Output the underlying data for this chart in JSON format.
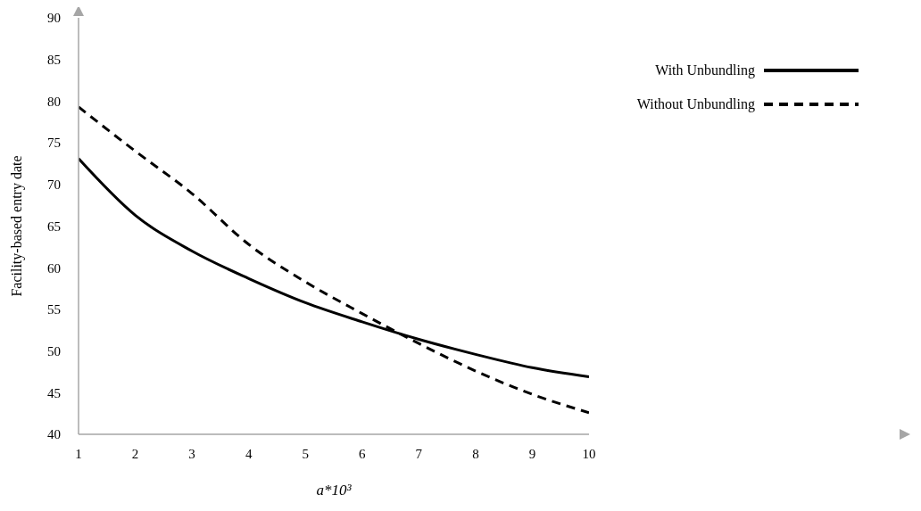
{
  "chart_data": {
    "type": "line",
    "xlabel": "a*10³",
    "ylabel": "Facility-based entry date",
    "x": [
      1,
      2,
      3,
      4,
      5,
      6,
      7,
      8,
      9,
      10
    ],
    "xlim": [
      1,
      10
    ],
    "xticks": [
      1,
      2,
      3,
      4,
      5,
      6,
      7,
      8,
      9,
      10
    ],
    "ylim": [
      40,
      90
    ],
    "yticks": [
      40,
      45,
      50,
      55,
      60,
      65,
      70,
      75,
      80,
      85,
      90
    ],
    "grid": false,
    "legend": "top right",
    "marker": "none",
    "series": [
      {
        "name": "With Unbundling",
        "color": "#000000",
        "line_style": "solid",
        "values": [
          73.1,
          66.3,
          62.0,
          58.7,
          55.8,
          53.5,
          51.4,
          49.6,
          48.0,
          46.9
        ]
      },
      {
        "name": "Without Unbundling",
        "color": "#000000",
        "line_style": "dashed",
        "values": [
          79.3,
          74.0,
          68.9,
          62.8,
          58.3,
          54.5,
          50.9,
          47.6,
          44.8,
          42.6
        ]
      }
    ]
  }
}
